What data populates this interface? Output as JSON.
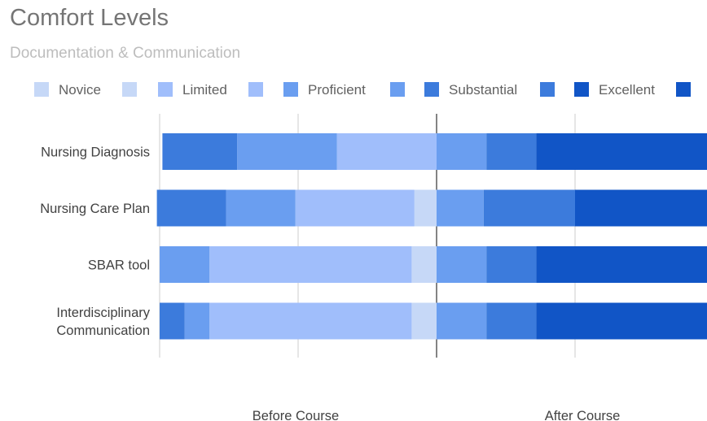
{
  "chart_data": {
    "type": "bar",
    "stacked": "diverging",
    "title": "Comfort Levels",
    "subtitle": "Documentation & Communication",
    "legend": {
      "placement": "top",
      "items": [
        {
          "label": "Novice",
          "color": "#c6d8f7"
        },
        {
          "label": "Limited",
          "color": "#a0befb"
        },
        {
          "label": "Proficient",
          "color": "#6a9ef0"
        },
        {
          "label": "Substantial",
          "color": "#3c7bdc"
        },
        {
          "label": "Excellent",
          "color": "#1155c6"
        }
      ]
    },
    "categories": [
      "Nursing Diagnosis",
      "Nursing Care Plan",
      "SBAR tool",
      "Interdisciplinary Communication"
    ],
    "groups": [
      "Before Course",
      "After Course"
    ],
    "series": [
      {
        "name": "Novice",
        "group": "Before Course",
        "values": [
          0,
          8,
          9,
          9
        ]
      },
      {
        "name": "Limited",
        "group": "Before Course",
        "values": [
          36,
          43,
          73,
          73
        ]
      },
      {
        "name": "Proficient",
        "group": "Before Course",
        "values": [
          36,
          25,
          18,
          9
        ]
      },
      {
        "name": "Substantial",
        "group": "Before Course",
        "values": [
          27,
          25,
          0,
          9
        ]
      },
      {
        "name": "Novice",
        "group": "After Course",
        "values": [
          0,
          0,
          0,
          0
        ]
      },
      {
        "name": "Limited",
        "group": "After Course",
        "values": [
          0,
          0,
          0,
          0
        ]
      },
      {
        "name": "Proficient",
        "group": "After Course",
        "values": [
          18,
          17,
          18,
          18
        ]
      },
      {
        "name": "Substantial",
        "group": "After Course",
        "values": [
          18,
          33,
          18,
          18
        ]
      },
      {
        "name": "Excellent",
        "group": "After Course",
        "values": [
          64,
          50,
          64,
          64
        ]
      }
    ],
    "grid": true
  }
}
